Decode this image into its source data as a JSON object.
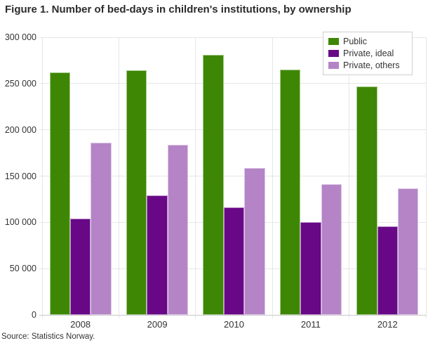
{
  "title": "Figure 1. Number of bed-days in children's institutions, by ownership",
  "source": "Source: Statistics Norway.",
  "colors": {
    "grid": "#e6e6e6",
    "axis_line": "#c9c9c9",
    "text": "#333333"
  },
  "chart_data": {
    "type": "bar",
    "title": "Figure 1. Number of bed-days in children's institutions, by ownership",
    "xlabel": "",
    "ylabel": "",
    "categories": [
      "2008",
      "2009",
      "2010",
      "2011",
      "2012"
    ],
    "series": [
      {
        "name": "Public",
        "color": "#3e8705",
        "values": [
          262000,
          264000,
          281000,
          265000,
          247000
        ]
      },
      {
        "name": "Private, ideal",
        "color": "#680887",
        "values": [
          104000,
          129000,
          116000,
          100000,
          96000
        ]
      },
      {
        "name": "Private, others",
        "color": "#b484c7",
        "values": [
          186000,
          184000,
          159000,
          141000,
          137000
        ]
      }
    ],
    "ylim": [
      0,
      300000
    ],
    "ytick_step": 50000,
    "ytick_labels": [
      "0",
      "50 000",
      "100 000",
      "150 000",
      "200 000",
      "250 000",
      "300 000"
    ],
    "grid": true,
    "legend_position": "top-right",
    "source": "Source: Statistics Norway."
  }
}
